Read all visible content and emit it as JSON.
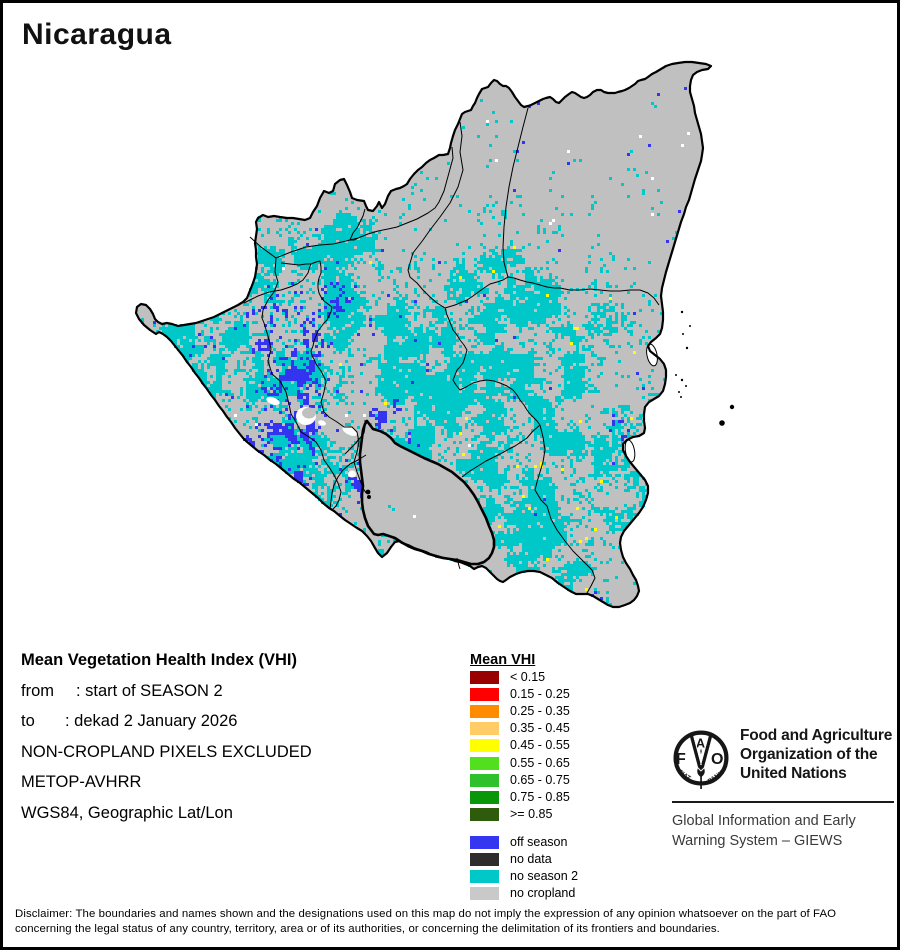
{
  "title": "Nicaragua",
  "info_block": {
    "heading": "Mean Vegetation Health Index (VHI)",
    "from_label": "from",
    "from_value": ": start of SEASON 2",
    "to_label": "to",
    "to_value": ": dekad 2 January 2026",
    "line4": "NON-CROPLAND PIXELS EXCLUDED",
    "line5": "METOP-AVHRR",
    "line6": "WGS84, Geographic Lat/Lon"
  },
  "legend": {
    "title": "Mean VHI",
    "classes": [
      {
        "label": "< 0.15",
        "color": "#990000"
      },
      {
        "label": "0.15 - 0.25",
        "color": "#FE0000"
      },
      {
        "label": "0.25 - 0.35",
        "color": "#FF8C00"
      },
      {
        "label": "0.35 - 0.45",
        "color": "#FFCC66"
      },
      {
        "label": "0.45 - 0.55",
        "color": "#FFFF00"
      },
      {
        "label": "0.55 - 0.65",
        "color": "#52E01E"
      },
      {
        "label": "0.65 - 0.75",
        "color": "#2EC12B"
      },
      {
        "label": "0.75 - 0.85",
        "color": "#0A9609"
      },
      {
        "label": ">= 0.85",
        "color": "#2E5B0C"
      }
    ],
    "extra": [
      {
        "label": "off season",
        "color": "#3437EF"
      },
      {
        "label": "no data",
        "color": "#2D2D2D"
      },
      {
        "label": "no season 2",
        "color": "#00C8C8"
      },
      {
        "label": "no cropland",
        "color": "#C9C9C9"
      }
    ]
  },
  "footer": {
    "org_lines": [
      "Food and Agriculture",
      "Organization of the",
      "United Nations"
    ],
    "giews_lines": [
      "Global Information and Early",
      "Warning System – GIEWS"
    ],
    "logo": {
      "f": "F",
      "a": "A",
      "o": "O",
      "motto_left": "FIAT",
      "motto_right": "PANIS"
    }
  },
  "disclaimer_lines": [
    "Disclaimer: The boundaries and names shown and the designations used on this map do not imply the expression of any opinion whatsoever on the part of FAO",
    "concerning the legal status of any country, territory, area or of its authorities, or concerning the delimitation of its frontiers and boundaries."
  ],
  "map": {
    "colors": {
      "no_cropland": "#C0C0C0",
      "no_season2": "#00C8C8",
      "off_season": "#3333F0",
      "vhi_yellow": "#FFFF00",
      "water_white": "#FFFFFF",
      "boundary": "#000000"
    }
  }
}
